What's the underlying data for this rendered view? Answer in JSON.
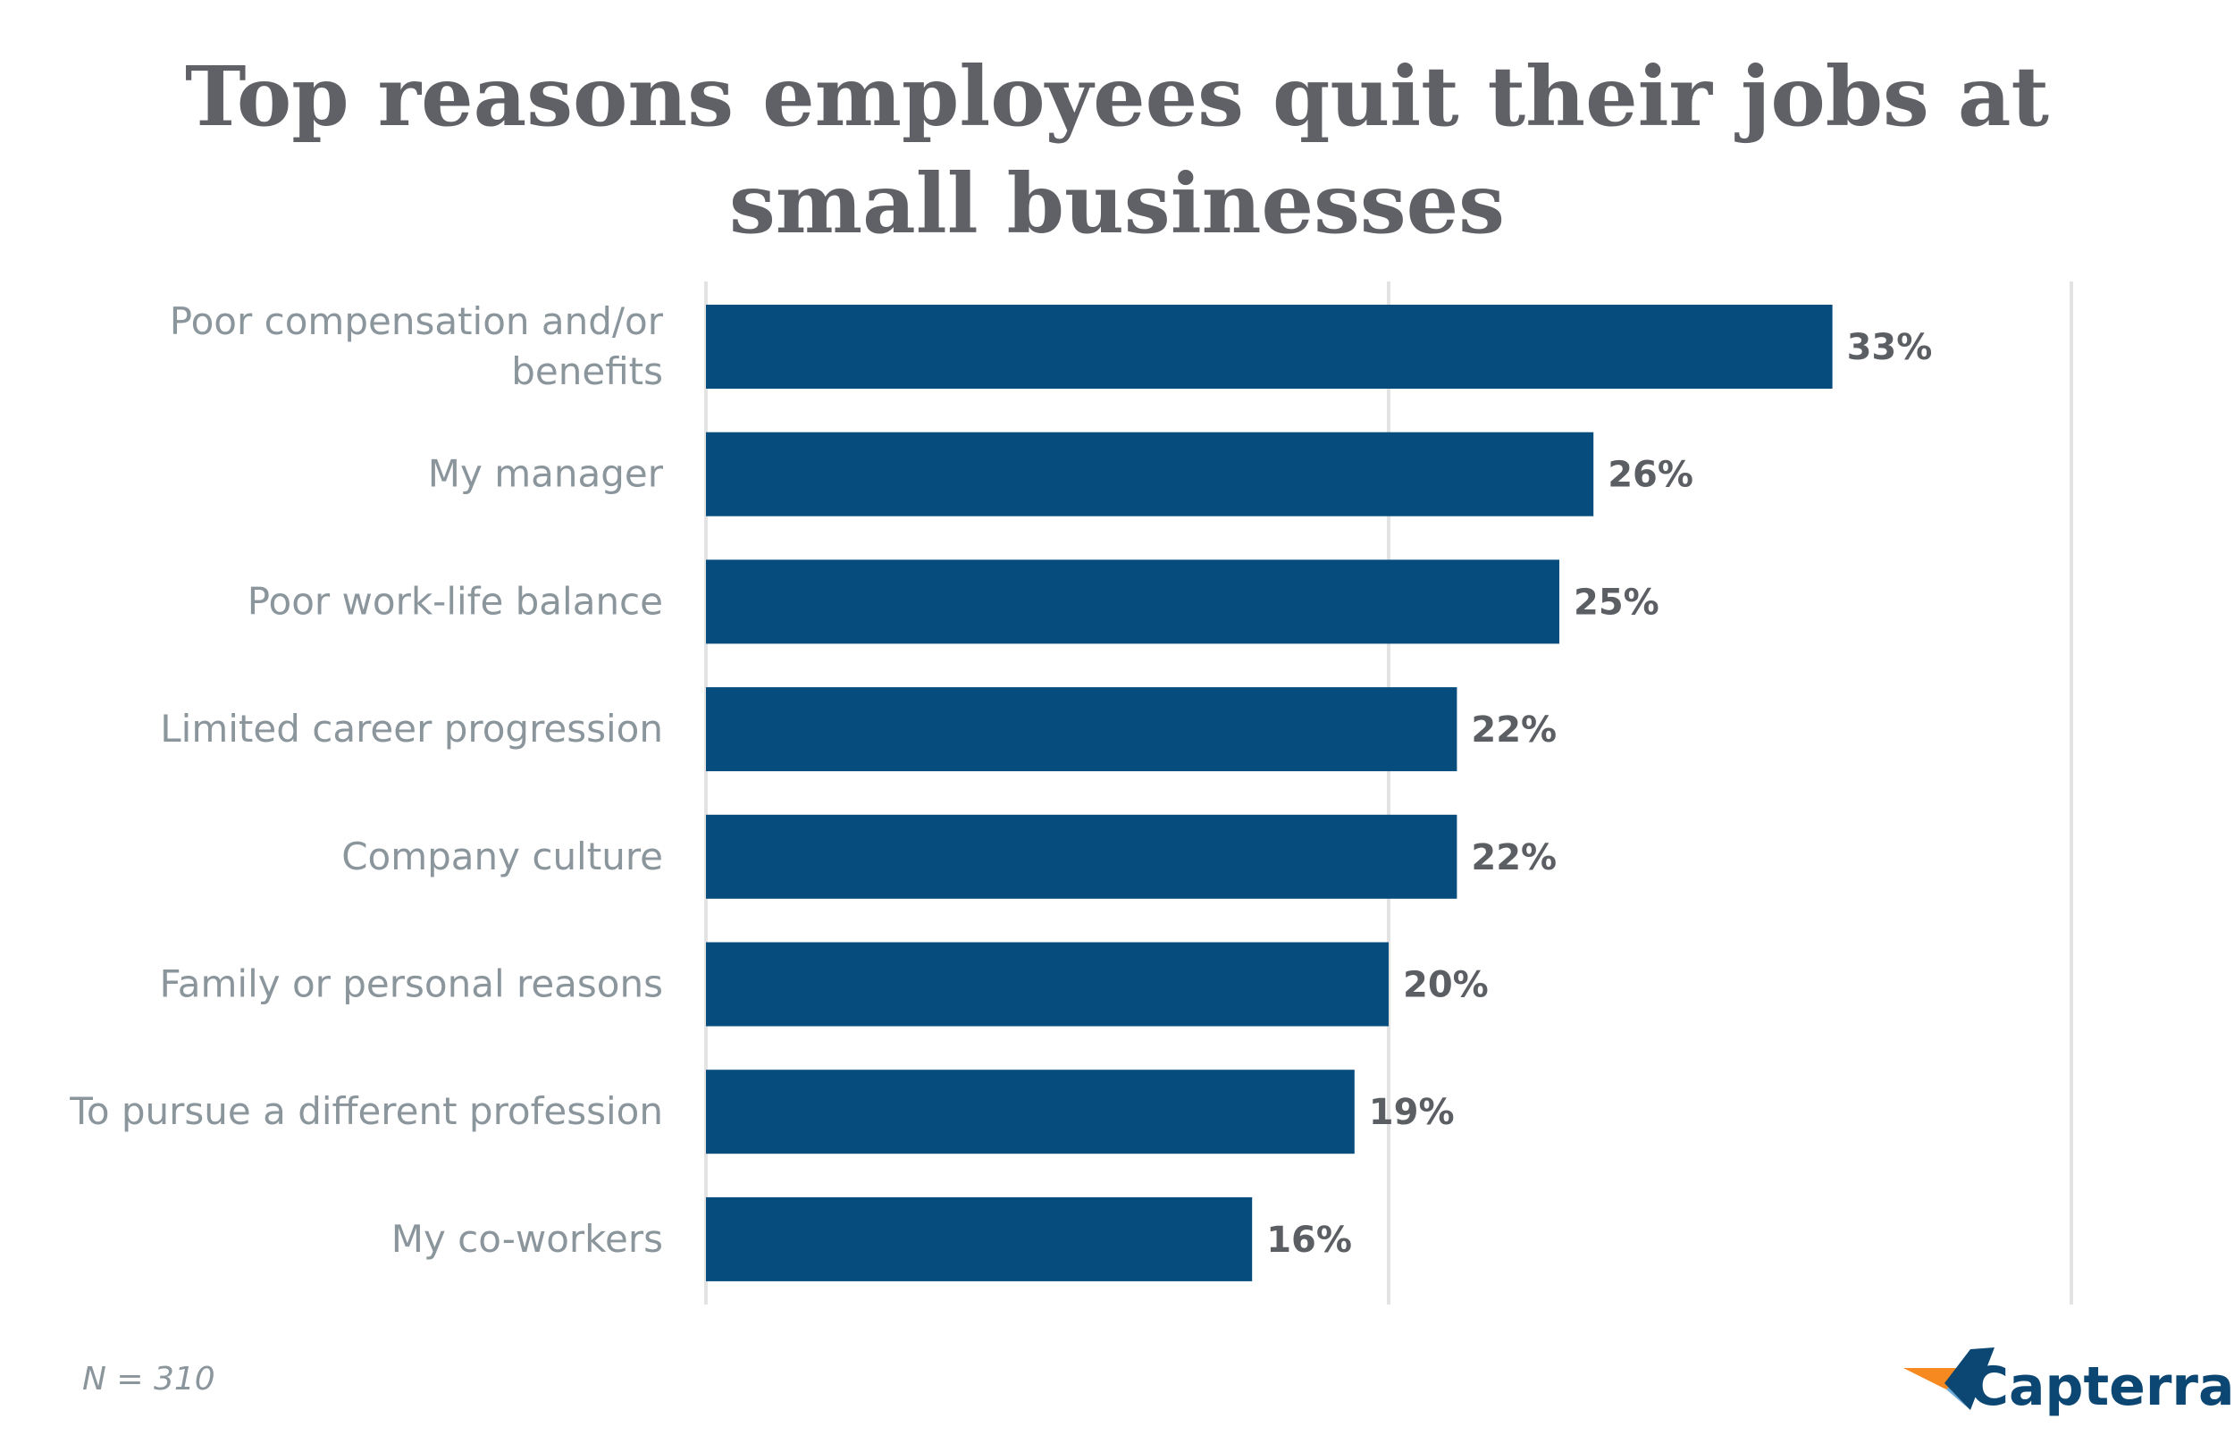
{
  "chart_data": {
    "type": "bar",
    "orientation": "horizontal",
    "title": "Top reasons employees quit their jobs at small businesses",
    "title_lines": [
      "Top reasons employees quit their jobs at",
      "small businesses"
    ],
    "categories": [
      "Poor compensation and/or benefits",
      "My manager",
      "Poor work-life balance",
      "Limited career progression",
      "Company culture",
      "Family or personal reasons",
      "To pursue a different profession",
      "My co-workers"
    ],
    "category_lines": [
      [
        "Poor compensation and/or",
        "benefits"
      ],
      [
        "My manager"
      ],
      [
        "Poor work-life balance"
      ],
      [
        "Limited career progression"
      ],
      [
        "Company culture"
      ],
      [
        "Family or personal reasons"
      ],
      [
        "To pursue a different profession"
      ],
      [
        "My co-workers"
      ]
    ],
    "values": [
      33,
      26,
      25,
      22,
      22,
      20,
      19,
      16
    ],
    "value_labels": [
      "33%",
      "26%",
      "25%",
      "22%",
      "22%",
      "20%",
      "19%",
      "16%"
    ],
    "unit": "%",
    "xlim": [
      0,
      40
    ],
    "gridlines": [
      0,
      20,
      40
    ],
    "grid": true,
    "legend": "none",
    "bar_color": "#064d7e",
    "sample_note": "N = 310"
  },
  "brand": {
    "name": "Capterra",
    "icon": "capterra-arrow-icon",
    "colors": {
      "orange": "#f6891f",
      "light_blue": "#6ea9d7",
      "dark_blue": "#0c4672"
    }
  }
}
